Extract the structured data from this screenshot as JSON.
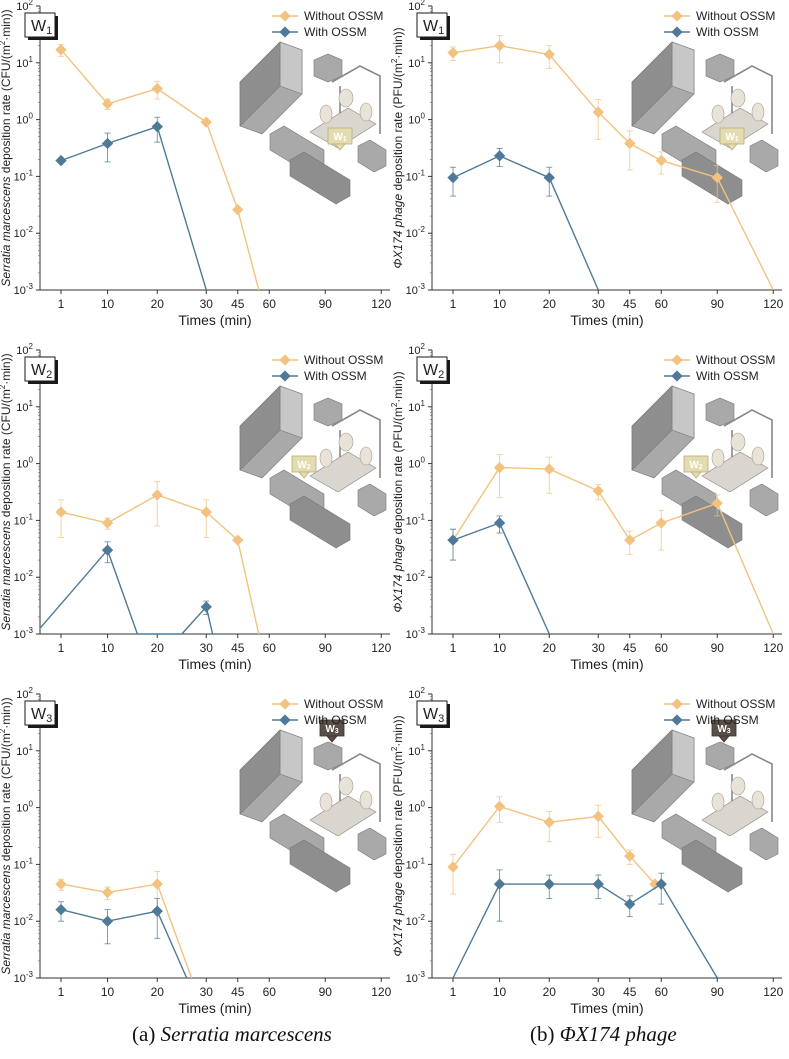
{
  "chart_data": [
    {
      "type": "line",
      "panel": "a1",
      "badge": "W",
      "badge_sub": "1",
      "badge_style": "light",
      "x_ticks": [
        "1",
        "10",
        "20",
        "30",
        "45",
        "60",
        "90",
        "120"
      ],
      "xlabel": "Times (min)",
      "ylabel_italic": "Serratia marcescens",
      "ylabel_rest": " deposition rate (CFU/(m",
      "ylabel_sup": "2",
      "ylabel_end": "·min))",
      "ylim": [
        0.001,
        100
      ],
      "y_tick_base": "10",
      "y_tick_exps": [
        "-3",
        "-2",
        "-1",
        "0",
        "1",
        "2"
      ],
      "legend": [
        "Without OSSM",
        "With OSSM"
      ],
      "series": [
        {
          "name": "Without OSSM",
          "color": "#F2C27E",
          "points": [
            [
              1,
              17,
              4
            ],
            [
              10,
              1.9,
              0.4
            ],
            [
              20,
              3.5,
              1.2
            ],
            [
              30,
              0.9,
              0
            ],
            [
              45,
              0.026,
              0
            ],
            [
              55,
              0.001,
              0
            ]
          ]
        },
        {
          "name": "With OSSM",
          "color": "#4E7A97",
          "points": [
            [
              1,
              0.19,
              0
            ],
            [
              10,
              0.38,
              0.2
            ],
            [
              20,
              0.75,
              0.35
            ],
            [
              30,
              0.001,
              0
            ]
          ]
        }
      ]
    },
    {
      "type": "line",
      "panel": "b1",
      "badge": "W",
      "badge_sub": "1",
      "badge_style": "light",
      "x_ticks": [
        "1",
        "10",
        "20",
        "30",
        "45",
        "60",
        "90",
        "120"
      ],
      "xlabel": "Times (min)",
      "ylabel_italic": "ΦX174 phage",
      "ylabel_rest": " deposition rate (PFU/(m",
      "ylabel_sup": "2",
      "ylabel_end": "·min))",
      "ylim": [
        0.001,
        100
      ],
      "y_tick_base": "10",
      "y_tick_exps": [
        "-3",
        "-2",
        "-1",
        "0",
        "1",
        "2"
      ],
      "legend": [
        "Without OSSM",
        "With OSSM"
      ],
      "series": [
        {
          "name": "Without OSSM",
          "color": "#F2C27E",
          "points": [
            [
              1,
              15,
              4
            ],
            [
              10,
              20,
              10
            ],
            [
              20,
              14,
              6
            ],
            [
              30,
              1.35,
              0.9
            ],
            [
              45,
              0.38,
              0.25
            ],
            [
              60,
              0.19,
              0.08
            ],
            [
              90,
              0.095,
              0.06
            ],
            [
              120,
              0.001,
              0
            ]
          ]
        },
        {
          "name": "With OSSM",
          "color": "#4E7A97",
          "points": [
            [
              1,
              0.095,
              0.05
            ],
            [
              10,
              0.23,
              0.08
            ],
            [
              20,
              0.095,
              0.05
            ],
            [
              30,
              0.001,
              0
            ]
          ]
        }
      ]
    },
    {
      "type": "line",
      "panel": "a2",
      "badge": "W",
      "badge_sub": "2",
      "badge_style": "light",
      "x_ticks": [
        "1",
        "10",
        "20",
        "30",
        "45",
        "60",
        "90",
        "120"
      ],
      "xlabel": "Times (min)",
      "ylabel_italic": "Serratia marcescens",
      "ylabel_rest": " deposition rate (CFU/(m",
      "ylabel_sup": "2",
      "ylabel_end": "·min))",
      "ylim": [
        0.001,
        100
      ],
      "y_tick_base": "10",
      "y_tick_exps": [
        "-3",
        "-2",
        "-1",
        "0",
        "1",
        "2"
      ],
      "legend": [
        "Without OSSM",
        "With OSSM"
      ],
      "series": [
        {
          "name": "Without OSSM",
          "color": "#F2C27E",
          "points": [
            [
              1,
              0.14,
              0.09
            ],
            [
              10,
              0.09,
              0.02
            ],
            [
              20,
              0.28,
              0.2
            ],
            [
              30,
              0.14,
              0.09
            ],
            [
              45,
              0.045,
              0
            ],
            [
              55,
              0.001,
              0
            ]
          ]
        },
        {
          "name": "With OSSM",
          "color": "#4E7A97",
          "points": [
            [
              -4,
              0.001,
              0
            ],
            [
              10,
              0.03,
              0.012
            ],
            [
              16,
              0.001,
              0
            ],
            [
              25,
              0.001,
              0
            ],
            [
              30,
              0.003,
              0.0008
            ],
            [
              33,
              0.001,
              0
            ]
          ]
        }
      ]
    },
    {
      "type": "line",
      "panel": "b2",
      "badge": "W",
      "badge_sub": "2",
      "badge_style": "light",
      "x_ticks": [
        "1",
        "10",
        "20",
        "30",
        "45",
        "60",
        "90",
        "120"
      ],
      "xlabel": "Times (min)",
      "ylabel_italic": "ΦX174 phage",
      "ylabel_rest": " deposition rate (PFU/(m",
      "ylabel_sup": "2",
      "ylabel_end": "·min))",
      "ylim": [
        0.001,
        100
      ],
      "y_tick_base": "10",
      "y_tick_exps": [
        "-3",
        "-2",
        "-1",
        "0",
        "1",
        "2"
      ],
      "legend": [
        "Without OSSM",
        "With OSSM"
      ],
      "series": [
        {
          "name": "Without OSSM",
          "color": "#F2C27E",
          "points": [
            [
              1,
              0.045,
              0.025
            ],
            [
              10,
              0.85,
              0.6
            ],
            [
              20,
              0.8,
              0.5
            ],
            [
              30,
              0.33,
              0.1
            ],
            [
              45,
              0.045,
              0.02
            ],
            [
              60,
              0.09,
              0.06
            ],
            [
              90,
              0.2,
              0.08
            ],
            [
              120,
              0.001,
              0
            ]
          ]
        },
        {
          "name": "With OSSM",
          "color": "#4E7A97",
          "points": [
            [
              1,
              0.045,
              0.025
            ],
            [
              10,
              0.09,
              0.03
            ],
            [
              20,
              0.001,
              0
            ]
          ]
        }
      ]
    },
    {
      "type": "line",
      "panel": "a3",
      "badge": "W",
      "badge_sub": "3",
      "badge_style": "dark",
      "x_ticks": [
        "1",
        "10",
        "20",
        "30",
        "45",
        "60",
        "90",
        "120"
      ],
      "xlabel": "Times (min)",
      "ylabel_italic": "Serratia marcescens",
      "ylabel_rest": " deposition rate (CFU/(m",
      "ylabel_sup": "2",
      "ylabel_end": "·min))",
      "ylim": [
        0.001,
        100
      ],
      "y_tick_base": "10",
      "y_tick_exps": [
        "-3",
        "-2",
        "-1",
        "0",
        "1",
        "2"
      ],
      "legend": [
        "Without OSSM",
        "With OSSM"
      ],
      "series": [
        {
          "name": "Without OSSM",
          "color": "#F2C27E",
          "points": [
            [
              1,
              0.045,
              0.01
            ],
            [
              10,
              0.032,
              0.008
            ],
            [
              20,
              0.045,
              0.03
            ],
            [
              27,
              0.001,
              0
            ]
          ]
        },
        {
          "name": "With OSSM",
          "color": "#4E7A97",
          "points": [
            [
              1,
              0.016,
              0.006
            ],
            [
              10,
              0.01,
              0.006
            ],
            [
              20,
              0.015,
              0.01
            ],
            [
              26,
              0.001,
              0
            ]
          ]
        }
      ]
    },
    {
      "type": "line",
      "panel": "b3",
      "badge": "W",
      "badge_sub": "3",
      "badge_style": "dark",
      "x_ticks": [
        "1",
        "10",
        "20",
        "30",
        "45",
        "60",
        "90",
        "120"
      ],
      "xlabel": "Times (min)",
      "ylabel_italic": "ΦX174 phage",
      "ylabel_rest": " deposition rate (PFU/(m",
      "ylabel_sup": "2",
      "ylabel_end": "·min))",
      "ylim": [
        0.001,
        100
      ],
      "y_tick_base": "10",
      "y_tick_exps": [
        "-3",
        "-2",
        "-1",
        "0",
        "1",
        "2"
      ],
      "legend": [
        "Without OSSM",
        "With OSSM"
      ],
      "series": [
        {
          "name": "Without OSSM",
          "color": "#F2C27E",
          "points": [
            [
              1,
              0.09,
              0.06
            ],
            [
              10,
              1.05,
              0.5
            ],
            [
              20,
              0.55,
              0.3
            ],
            [
              30,
              0.7,
              0.4
            ],
            [
              45,
              0.14,
              0.04
            ],
            [
              57,
              0.045,
              0
            ]
          ]
        },
        {
          "name": "With OSSM",
          "color": "#4E7A97",
          "points": [
            [
              1,
              0.001,
              0
            ],
            [
              10,
              0.045,
              0.035
            ],
            [
              20,
              0.045,
              0.02
            ],
            [
              30,
              0.045,
              0.02
            ],
            [
              45,
              0.02,
              0.008
            ],
            [
              60,
              0.045,
              0.025
            ],
            [
              90,
              0.001,
              0
            ]
          ]
        }
      ]
    }
  ],
  "captions": {
    "a_prefix": "(a) ",
    "a_italic": "Serratia marcescens",
    "b_prefix": "(b) ",
    "b_italic": "ΦX174 phage"
  }
}
